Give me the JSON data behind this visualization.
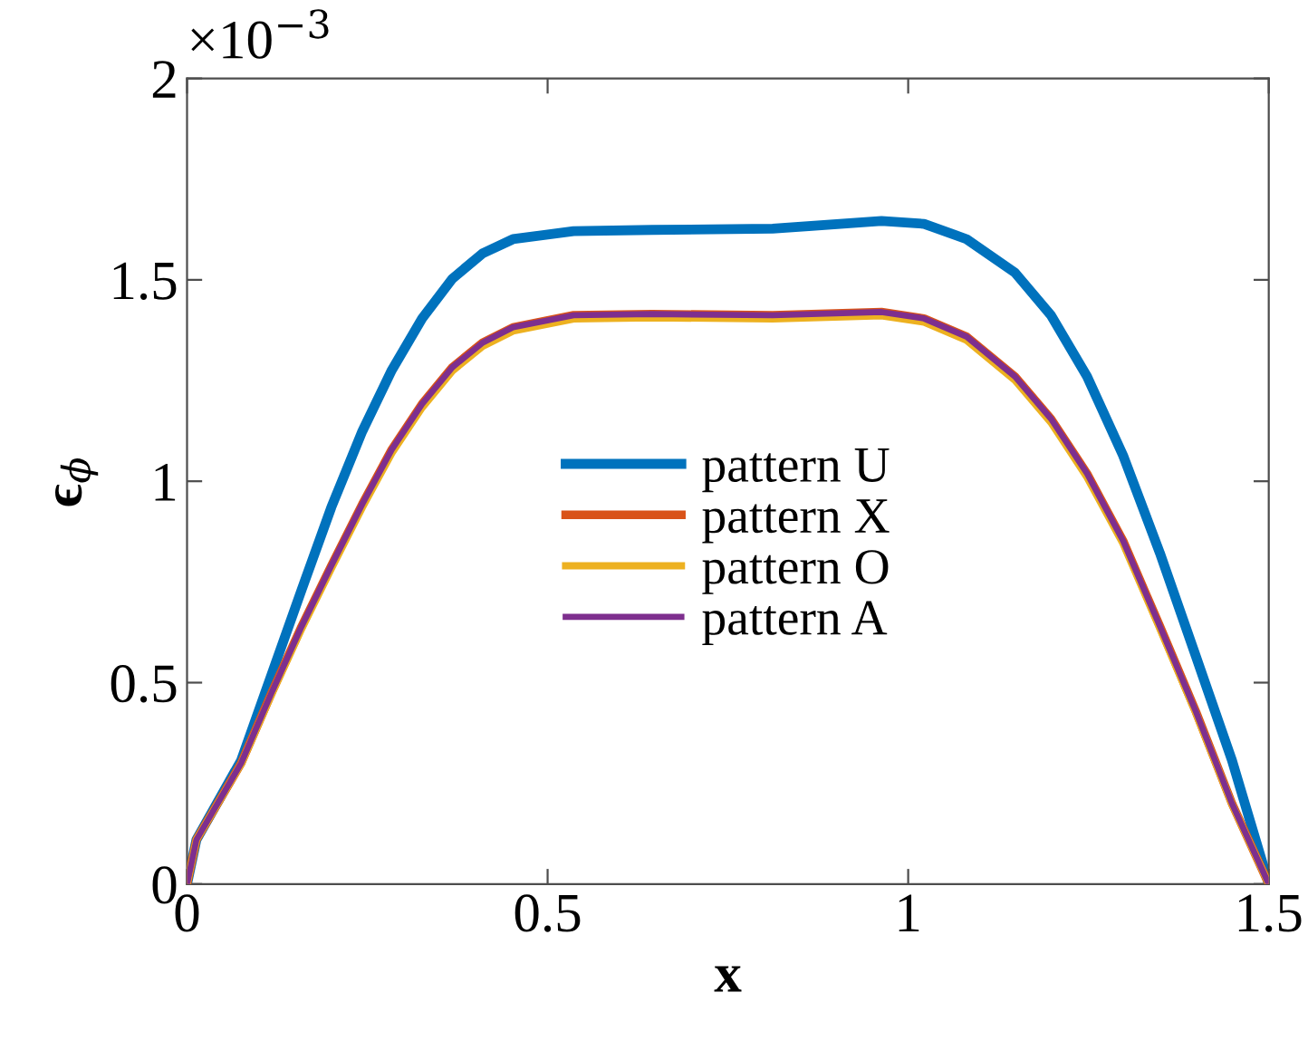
{
  "chart_data": {
    "type": "line",
    "xlabel": "x",
    "ylabel": "ϵ$_{ϕ}$",
    "annotations": [
      "×10$^{−3}$"
    ],
    "x": [
      0,
      0.013,
      0.075,
      0.117,
      0.159,
      0.2,
      0.243,
      0.284,
      0.326,
      0.368,
      0.41,
      0.452,
      0.536,
      0.645,
      0.812,
      0.963,
      1.022,
      1.081,
      1.148,
      1.198,
      1.248,
      1.298,
      1.349,
      1.399,
      1.449,
      1.5
    ],
    "series": [
      {
        "name": "pattern U",
        "color": "#0072bd",
        "values": [
          0,
          0.11,
          0.307,
          0.519,
          0.731,
          0.935,
          1.124,
          1.276,
          1.404,
          1.503,
          1.566,
          1.601,
          1.621,
          1.624,
          1.627,
          1.646,
          1.639,
          1.601,
          1.518,
          1.412,
          1.26,
          1.064,
          0.822,
          0.565,
          0.307,
          0
        ]
      },
      {
        "name": "pattern X",
        "color": "#d95319",
        "values": [
          0,
          0.11,
          0.3,
          0.474,
          0.64,
          0.79,
          0.943,
          1.079,
          1.192,
          1.283,
          1.344,
          1.382,
          1.412,
          1.415,
          1.412,
          1.42,
          1.404,
          1.359,
          1.26,
          1.155,
          1.019,
          0.852,
          0.64,
          0.428,
          0.2,
          0
        ]
      },
      {
        "name": "pattern O",
        "color": "#edb120",
        "values": [
          0,
          0.11,
          0.298,
          0.47,
          0.634,
          0.783,
          0.935,
          1.07,
          1.183,
          1.274,
          1.335,
          1.373,
          1.403,
          1.406,
          1.403,
          1.411,
          1.395,
          1.35,
          1.251,
          1.146,
          1.01,
          0.845,
          0.634,
          0.424,
          0.198,
          0
        ]
      },
      {
        "name": "pattern A",
        "color": "#7e2f8e",
        "values": [
          0,
          0.11,
          0.3,
          0.474,
          0.64,
          0.79,
          0.943,
          1.079,
          1.192,
          1.283,
          1.344,
          1.382,
          1.412,
          1.415,
          1.412,
          1.42,
          1.404,
          1.359,
          1.26,
          1.155,
          1.019,
          0.852,
          0.64,
          0.428,
          0.2,
          0
        ]
      }
    ],
    "xlim": [
      0,
      1.5
    ],
    "xticks": [
      0,
      0.5,
      1,
      1.5
    ],
    "ylim": [
      0,
      2
    ],
    "yticks": [
      0,
      0.5,
      1,
      1.5,
      2
    ],
    "grid": false,
    "legend": "center",
    "line_style": "solid",
    "marker": "none"
  }
}
